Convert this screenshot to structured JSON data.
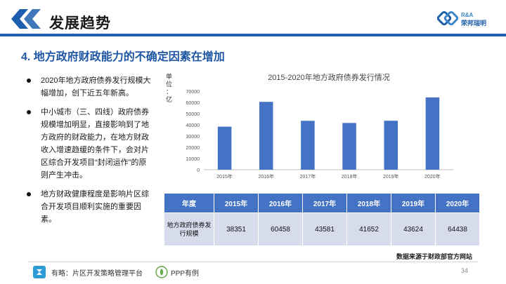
{
  "header": {
    "title": "发展趋势"
  },
  "brand": {
    "mark_text": "R&A",
    "name": "荣邦瑞明"
  },
  "section": {
    "title": "4. 地方政府财政能力的不确定因素在增加"
  },
  "bullets": [
    "2020年地方政府债券发行规模大幅增加，创下近五年新高。",
    "中小城市（三、四线）政府债券规模增加明显，直接影响到了地方政府的财政能力，在地方财政收入增速趋缓的条件下，会对片区综合开发项目“封闭运作”的原则产生冲击。",
    "地方财政健康程度是影响片区综合开发项目顺利实施的重要因素。"
  ],
  "chart_data": {
    "type": "bar",
    "title": "2015-2020年地方政府债券发行情况",
    "ylabel": "单位：亿",
    "categories": [
      "2015年",
      "2016年",
      "2017年",
      "2018年",
      "2019年",
      "2020年"
    ],
    "values": [
      38351,
      60458,
      43581,
      41652,
      43624,
      64438
    ],
    "ylim": [
      0,
      70000
    ],
    "yticks": [
      0,
      10000,
      20000,
      30000,
      40000,
      50000,
      60000,
      70000
    ],
    "grid": false,
    "bar_color": "#4472c4"
  },
  "table": {
    "header_label": "年度",
    "row_label": "地方政府债券发行规模",
    "years": [
      "2015年",
      "2016年",
      "2017年",
      "2018年",
      "2019年",
      "2020年"
    ],
    "values": [
      "38351",
      "60458",
      "43581",
      "41652",
      "43624",
      "64438"
    ]
  },
  "source": "数据来源于财政部官方网站",
  "footer": {
    "text1": "有略：片区开发策略管理平台",
    "text2": "PPP有例",
    "page": "34"
  }
}
